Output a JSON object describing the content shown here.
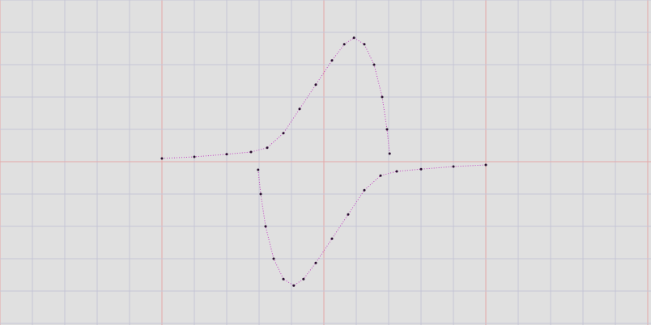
{
  "chart_data": {
    "type": "scatter",
    "xlim": [
      -10,
      10
    ],
    "ylim": [
      -5,
      5
    ],
    "xticks": [
      -10,
      -9,
      -8,
      -7,
      -6,
      -5,
      -4,
      -3,
      -2,
      -1,
      0,
      1,
      2,
      3,
      4,
      5,
      6,
      7,
      8,
      9,
      10
    ],
    "yticks": [
      -5,
      -4,
      -3,
      -2,
      -1,
      0,
      1,
      2,
      3,
      4,
      5
    ],
    "grid": true,
    "series": [
      {
        "color": "#2a1030",
        "x": [
          -5,
          -4,
          -3,
          -2.25,
          -1.75,
          -1.25,
          -0.75,
          -0.25,
          0.25,
          0.63,
          0.93,
          1.25,
          1.55,
          1.8,
          1.95,
          2.03
        ],
        "y": [
          0.1,
          0.15,
          0.23,
          0.3,
          0.43,
          0.88,
          1.63,
          2.38,
          3.13,
          3.63,
          3.83,
          3.63,
          3,
          2,
          1,
          0.25
        ]
      },
      {
        "color": "#2a1030",
        "x": [
          -2.03,
          -1.95,
          -1.8,
          -1.55,
          -1.25,
          -0.93,
          -0.63,
          -0.25,
          0.25,
          0.75,
          1.25,
          1.75,
          2.25,
          3,
          4,
          5
        ],
        "y": [
          -0.25,
          -1,
          -2,
          -3,
          -3.63,
          -3.83,
          -3.63,
          -3.13,
          -2.38,
          -1.63,
          -0.88,
          -0.43,
          -0.3,
          -0.23,
          -0.15,
          -0.1
        ]
      }
    ]
  }
}
